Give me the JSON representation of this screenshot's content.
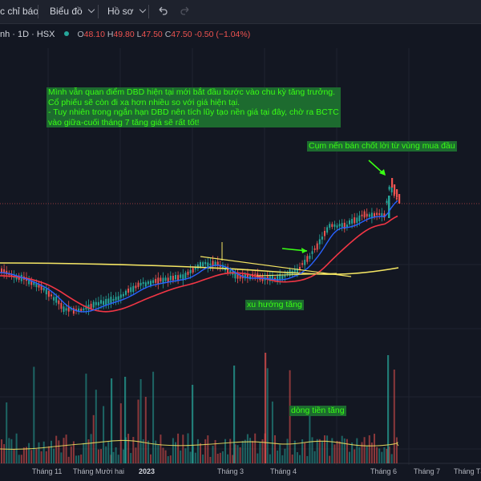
{
  "toolbar": {
    "indicators_label": "c chỉ báo",
    "chart_label": "Biểu đồ",
    "profile_label": "Hồ sơ"
  },
  "legend": {
    "symbol": "nh · 1D · HSX",
    "open_key": "O",
    "open": "48.10",
    "high_key": "H",
    "high": "49.80",
    "low_key": "L",
    "low": "47.50",
    "close_key": "C",
    "close": "47.50",
    "change": "-0.50 (−1.04%)"
  },
  "annotations": {
    "main_note": [
      "Mình vẫn quan điểm DBD hiện tại mới bắt đầu bước vào chu kỳ tăng trưởng.",
      "Cổ phiếu sẽ còn đi xa hơn nhiều so với giá hiện tại.",
      "- Tuy nhiên trong ngắn hạn DBD nên tích lũy tạo nền giá tại đây, chờ ra BCTC",
      "vào giữa-cuối tháng 7 tăng giá sẽ rất tốt!"
    ],
    "top_candle": "Cụm nến bán chốt lời từ vùng mua đầu",
    "uptrend": "xu hướng tăng",
    "money_flow": "dòng tiền tăng"
  },
  "x_axis": {
    "labels": [
      "Tháng 11",
      "Tháng Mười hai",
      "2023",
      "Tháng 3",
      "Tháng 4",
      "Tháng 6",
      "Tháng 7",
      "Tháng Tá"
    ]
  },
  "colors": {
    "background": "#131722",
    "up": "#26a69a",
    "down": "#ef5350",
    "ma_short": "#2962ff",
    "ma_mid": "#f23645",
    "ma_long": "#f5e663",
    "annotation_text": "#39ff14",
    "annotation_bg": "#1d6b2f"
  }
}
